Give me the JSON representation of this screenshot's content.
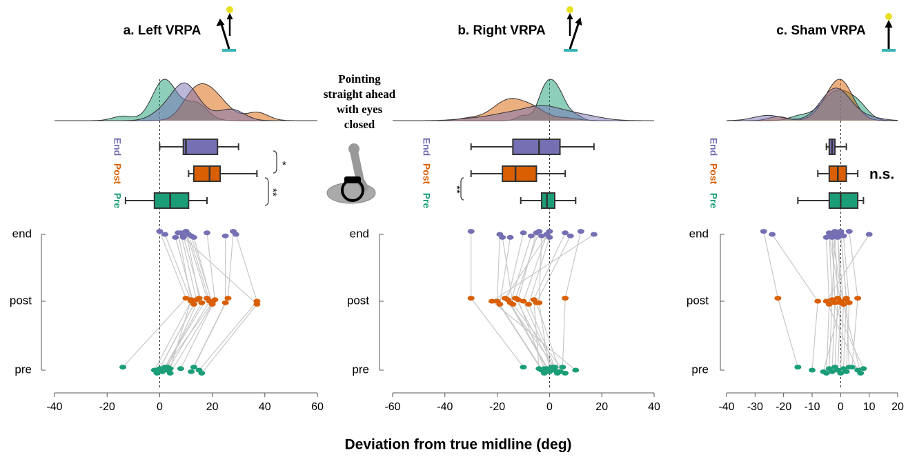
{
  "annotation": "Pointing straight ahead with eyes closed",
  "x_axis_label": "Deviation from true midline (deg)",
  "chart_data": [
    {
      "type": "paired-strip",
      "title": "a. Left VRPA",
      "categories": [
        "end",
        "post",
        "pre"
      ],
      "xlim": [
        -40,
        60
      ],
      "xticks": [
        -40,
        -20,
        0,
        20,
        40,
        60
      ],
      "reference_line": 0,
      "significance": [
        "*",
        "**"
      ],
      "series": [
        {
          "name": "End",
          "color": "#7570b3",
          "values": [
            0,
            2,
            6,
            8,
            9,
            10,
            11,
            13,
            18,
            25,
            28,
            29,
            9,
            7,
            12,
            10
          ],
          "box": {
            "min": 0,
            "q1": 9,
            "median": 10,
            "q3": 22,
            "max": 30
          }
        },
        {
          "name": "Post",
          "color": "#d95f02",
          "values": [
            10,
            12,
            13,
            14,
            16,
            18,
            19,
            20,
            21,
            25,
            26,
            37,
            37,
            12,
            20,
            15
          ],
          "box": {
            "min": 11,
            "q1": 13,
            "median": 19,
            "q3": 23,
            "max": 37
          }
        },
        {
          "name": "Pre",
          "color": "#1b9e77",
          "values": [
            -14,
            -2,
            -1,
            0,
            1,
            2,
            3,
            4,
            8,
            12,
            13,
            15,
            16,
            4,
            1,
            3
          ],
          "box": {
            "min": -13,
            "q1": -2,
            "median": 4,
            "q3": 11,
            "max": 18
          }
        }
      ]
    },
    {
      "type": "paired-strip",
      "title": "b. Right VRPA",
      "categories": [
        "end",
        "post",
        "pre"
      ],
      "xlim": [
        -60,
        40
      ],
      "xticks": [
        -60,
        -40,
        -20,
        0,
        20,
        40
      ],
      "reference_line": 0,
      "significance": [
        "**"
      ],
      "series": [
        {
          "name": "End",
          "color": "#7570b3",
          "values": [
            -30,
            -19,
            -15,
            -10,
            -7,
            -4,
            -1,
            0,
            6,
            8,
            12,
            17,
            -18,
            -5,
            -3,
            0
          ],
          "box": {
            "min": -30,
            "q1": -14,
            "median": -4,
            "q3": 4,
            "max": 17
          }
        },
        {
          "name": "Post",
          "color": "#d95f02",
          "values": [
            -30,
            -20,
            -19,
            -16,
            -15,
            -13,
            -10,
            -8,
            -6,
            -5,
            6,
            -22,
            -14,
            -12,
            -4,
            -17
          ],
          "box": {
            "min": -30,
            "q1": -18,
            "median": -13,
            "q3": -5,
            "max": 6
          }
        },
        {
          "name": "Pre",
          "color": "#1b9e77",
          "values": [
            -10,
            -3,
            -2,
            -1,
            0,
            1,
            2,
            3,
            -4,
            4,
            5,
            10,
            6,
            -2,
            0,
            2
          ],
          "box": {
            "min": -11,
            "q1": -3,
            "median": -1,
            "q3": 2,
            "max": 10
          }
        }
      ]
    },
    {
      "type": "paired-strip",
      "title": "c. Sham VRPA",
      "categories": [
        "end",
        "post",
        "pre"
      ],
      "xlim": [
        -40,
        20
      ],
      "xticks": [
        -40,
        -30,
        -20,
        -10,
        0,
        10,
        20
      ],
      "reference_line": 0,
      "significance": [
        "n.s."
      ],
      "series": [
        {
          "name": "End",
          "color": "#7570b3",
          "values": [
            -27,
            -24,
            -5,
            -4,
            -3,
            -2,
            -1,
            -1,
            0,
            1,
            3,
            10,
            -3,
            -2,
            -4,
            0
          ],
          "box": {
            "min": -5,
            "q1": -4,
            "median": -3,
            "q3": -2,
            "max": 2
          }
        },
        {
          "name": "Post",
          "color": "#d95f02",
          "values": [
            -22,
            -8,
            -4,
            -3,
            -2,
            -1,
            0,
            1,
            2,
            3,
            6,
            -5,
            1,
            -3,
            0,
            2
          ],
          "box": {
            "min": -8,
            "q1": -4,
            "median": -1,
            "q3": 2,
            "max": 6
          }
        },
        {
          "name": "Pre",
          "color": "#1b9e77",
          "values": [
            -15,
            -10,
            -5,
            -4,
            -3,
            -2,
            -1,
            0,
            1,
            2,
            4,
            6,
            7,
            8,
            -6,
            3
          ],
          "box": {
            "min": -15,
            "q1": -4,
            "median": 0,
            "q3": 6,
            "max": 8
          }
        }
      ]
    }
  ]
}
